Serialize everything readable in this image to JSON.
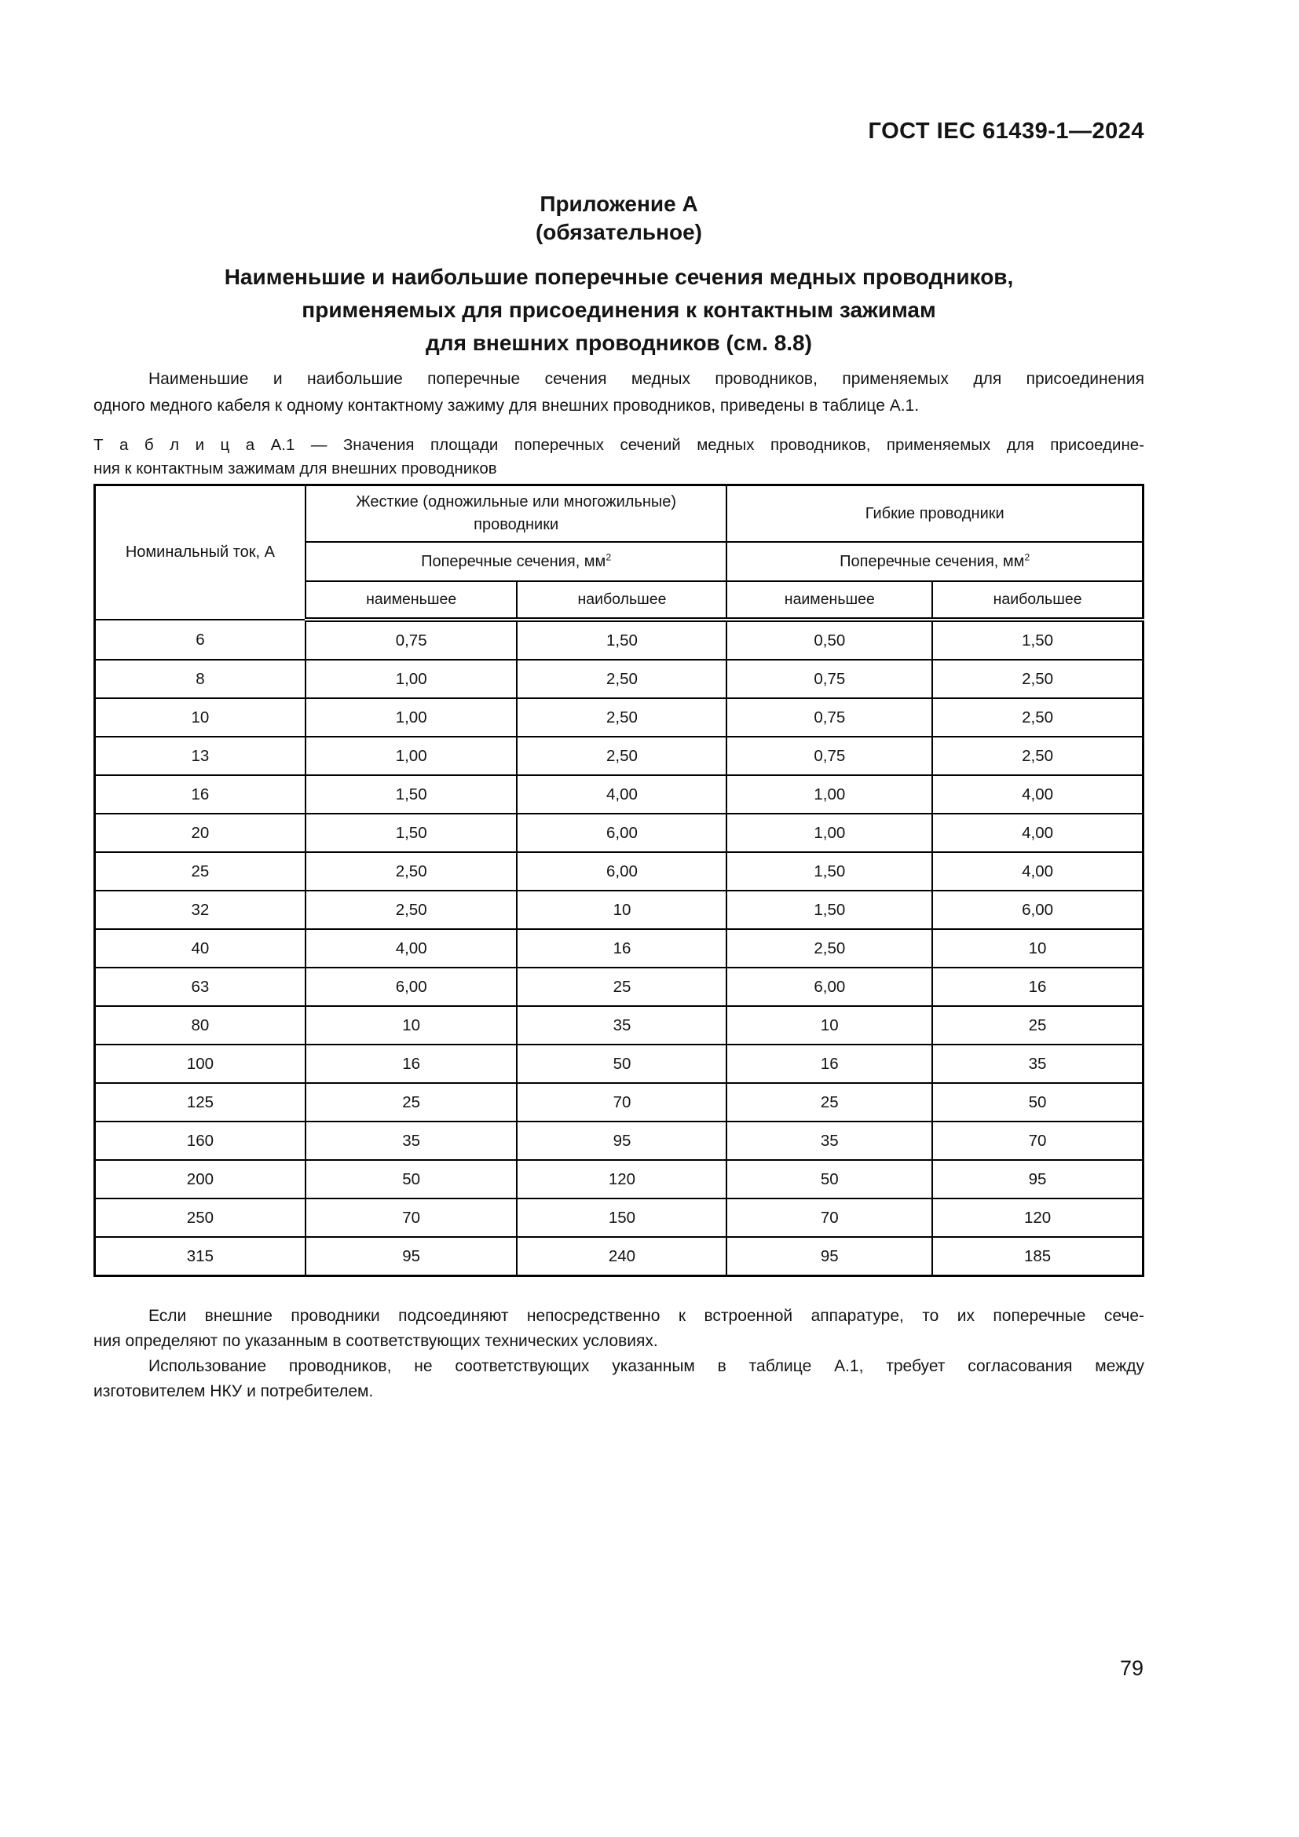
{
  "page": {
    "running_header": "ГОСТ IEC 61439-1—2024",
    "page_number": "79"
  },
  "appendix": {
    "label": "Приложение А",
    "subtitle": "(обязательное)",
    "title_lines": [
      "Наименьшие и наибольшие поперечные сечения медных проводников,",
      "применяемых для присоединения к контактным зажимам",
      "для внешних проводников (см. 8.8)"
    ]
  },
  "intro": {
    "line1": "Наименьшие и наибольшие поперечные сечения медных проводников, применяемых для присоединения",
    "line2": "одного медного кабеля к одному контактному зажиму для внешних проводников, приведены в таблице А.1."
  },
  "table": {
    "caption_label": "Т а б л и ц а   А.1",
    "caption_line1_rest": "— Значения площади поперечных сечений медных проводников, применяемых для присоедине-",
    "caption_line2": "ния к контактным зажимам для внешних проводников",
    "header": {
      "col_current": "Номинальный ток, А",
      "group_rigid_line1": "Жесткие (одножильные или многожильные)",
      "group_rigid_line2": "проводники",
      "group_flexible": "Гибкие проводники",
      "cross_section_prefix": "Поперечные сечения, мм",
      "cross_section_sup": "2",
      "min_label": "наименьшее",
      "max_label": "наибольшее"
    },
    "rows": [
      [
        "6",
        "0,75",
        "1,50",
        "0,50",
        "1,50"
      ],
      [
        "8",
        "1,00",
        "2,50",
        "0,75",
        "2,50"
      ],
      [
        "10",
        "1,00",
        "2,50",
        "0,75",
        "2,50"
      ],
      [
        "13",
        "1,00",
        "2,50",
        "0,75",
        "2,50"
      ],
      [
        "16",
        "1,50",
        "4,00",
        "1,00",
        "4,00"
      ],
      [
        "20",
        "1,50",
        "6,00",
        "1,00",
        "4,00"
      ],
      [
        "25",
        "2,50",
        "6,00",
        "1,50",
        "4,00"
      ],
      [
        "32",
        "2,50",
        "10",
        "1,50",
        "6,00"
      ],
      [
        "40",
        "4,00",
        "16",
        "2,50",
        "10"
      ],
      [
        "63",
        "6,00",
        "25",
        "6,00",
        "16"
      ],
      [
        "80",
        "10",
        "35",
        "10",
        "25"
      ],
      [
        "100",
        "16",
        "50",
        "16",
        "35"
      ],
      [
        "125",
        "25",
        "70",
        "25",
        "50"
      ],
      [
        "160",
        "35",
        "95",
        "35",
        "70"
      ],
      [
        "200",
        "50",
        "120",
        "50",
        "95"
      ],
      [
        "250",
        "70",
        "150",
        "70",
        "120"
      ],
      [
        "315",
        "95",
        "240",
        "95",
        "185"
      ]
    ]
  },
  "notes": {
    "p1_line1": "Если внешние проводники подсоединяют непосредственно к встроенной аппаратуре, то их поперечные сече-",
    "p1_line2": "ния определяют по указанным в соответствующих технических условиях.",
    "p2_line1": "Использование проводников, не соответствующих указанным в таблице А.1, требует согласования между",
    "p2_line2": "изготовителем НКУ и потребителем."
  }
}
